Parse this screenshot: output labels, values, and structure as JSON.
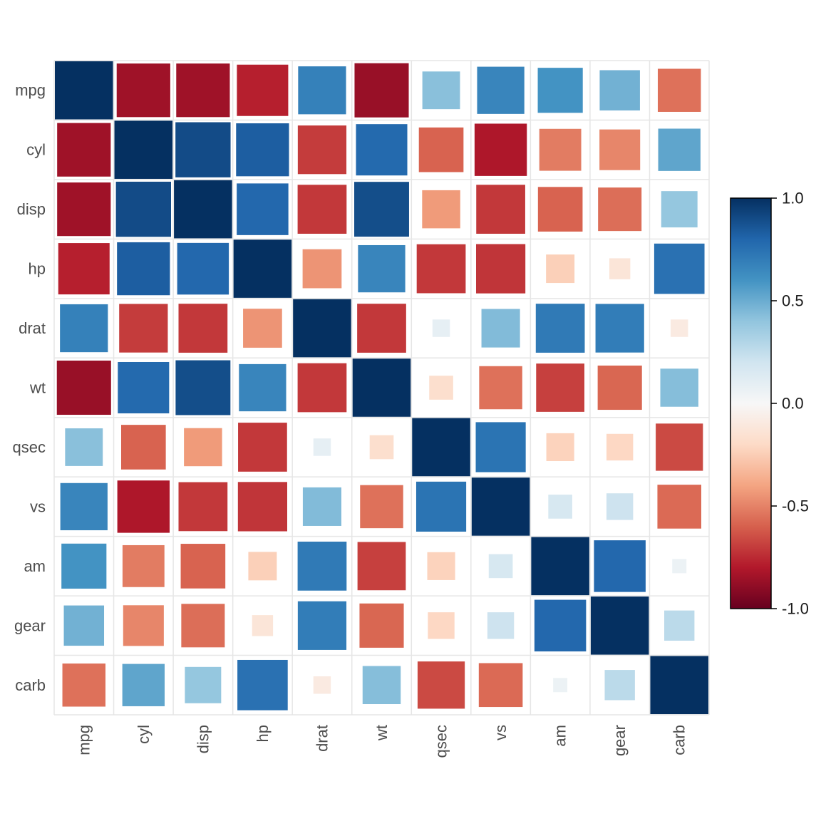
{
  "chart_data": {
    "type": "heatmap",
    "subtype": "correlation-matrix-square",
    "title": "",
    "xlabel": "",
    "ylabel": "",
    "variables": [
      "mpg",
      "cyl",
      "disp",
      "hp",
      "drat",
      "wt",
      "qsec",
      "vs",
      "am",
      "gear",
      "carb"
    ],
    "matrix": [
      [
        1.0,
        -0.85,
        -0.85,
        -0.78,
        0.68,
        -0.87,
        0.42,
        0.66,
        0.6,
        0.48,
        -0.55
      ],
      [
        -0.85,
        1.0,
        0.9,
        0.83,
        -0.7,
        0.78,
        -0.59,
        -0.81,
        -0.52,
        -0.49,
        0.53
      ],
      [
        -0.85,
        0.9,
        1.0,
        0.79,
        -0.71,
        0.89,
        -0.43,
        -0.71,
        -0.59,
        -0.56,
        0.39
      ],
      [
        -0.78,
        0.83,
        0.79,
        1.0,
        -0.45,
        0.66,
        -0.71,
        -0.72,
        -0.24,
        -0.13,
        0.75
      ],
      [
        0.68,
        -0.7,
        -0.71,
        -0.45,
        1.0,
        -0.71,
        0.09,
        0.44,
        0.71,
        0.7,
        -0.09
      ],
      [
        -0.87,
        0.78,
        0.89,
        0.66,
        -0.71,
        1.0,
        -0.17,
        -0.55,
        -0.69,
        -0.58,
        0.43
      ],
      [
        0.42,
        -0.59,
        -0.43,
        -0.71,
        0.09,
        -0.17,
        1.0,
        0.74,
        -0.23,
        -0.21,
        -0.66
      ],
      [
        0.66,
        -0.81,
        -0.71,
        -0.72,
        0.44,
        -0.55,
        0.74,
        1.0,
        0.17,
        0.21,
        -0.57
      ],
      [
        0.6,
        -0.52,
        -0.59,
        -0.24,
        0.71,
        -0.69,
        -0.23,
        0.17,
        1.0,
        0.79,
        0.06
      ],
      [
        0.48,
        -0.49,
        -0.56,
        -0.13,
        0.7,
        -0.58,
        -0.21,
        0.21,
        0.79,
        1.0,
        0.27
      ],
      [
        -0.55,
        0.53,
        0.39,
        0.75,
        -0.09,
        0.43,
        -0.66,
        -0.57,
        0.06,
        0.27,
        1.0
      ]
    ],
    "color_scale": {
      "min": -1.0,
      "max": 1.0,
      "ticks": [
        "1.0",
        "0.5",
        "0.0",
        "-0.5",
        "-1.0"
      ],
      "tick_values": [
        1.0,
        0.5,
        0.0,
        -0.5,
        -1.0
      ],
      "palette": [
        "#67001f",
        "#b2182b",
        "#d6604d",
        "#f4a582",
        "#fddbc7",
        "#f7f7f7",
        "#d1e5f0",
        "#92c5de",
        "#4393c3",
        "#2166ac",
        "#053061"
      ]
    },
    "legend": "right",
    "grid": true
  }
}
